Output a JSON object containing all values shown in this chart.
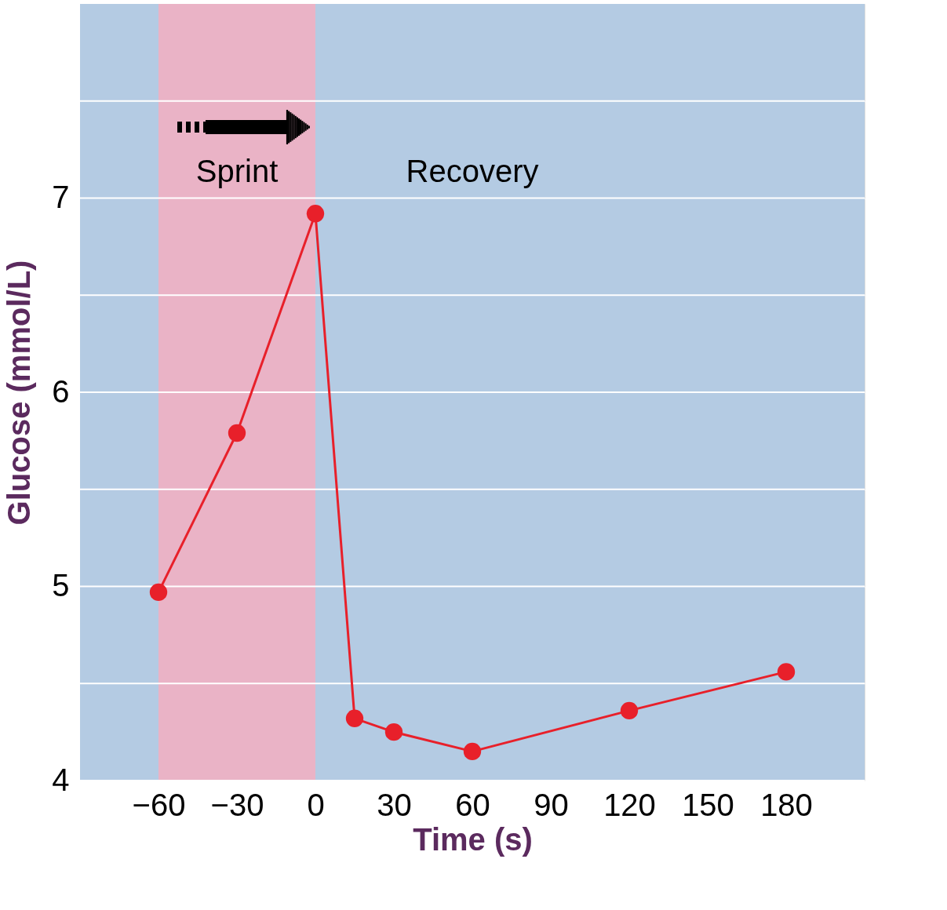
{
  "chart_data": {
    "type": "line",
    "xlabel": "Time (s)",
    "ylabel": "Glucose (mmol/L)",
    "x": [
      -60,
      -30,
      0,
      15,
      30,
      60,
      120,
      180
    ],
    "series": [
      {
        "color": "#e8202a",
        "values": [
          4.97,
          5.79,
          6.92,
          4.32,
          4.25,
          4.15,
          4.36,
          4.56
        ]
      }
    ],
    "xlim": [
      -90,
      210
    ],
    "xticks": [
      {
        "value": -60,
        "label": "−60"
      },
      {
        "value": -30,
        "label": "−30"
      },
      0,
      30,
      60,
      90,
      120,
      150,
      180
    ],
    "ylim": [
      4,
      8
    ],
    "yticks": [
      4,
      {
        "value": 4.5,
        "label": null
      },
      5,
      {
        "value": 5.5,
        "label": null
      },
      6,
      {
        "value": 6.5,
        "label": null
      },
      7,
      {
        "value": 7.5,
        "label": null
      }
    ],
    "grid": "y",
    "marker": "circle",
    "line_style": "solid",
    "annotations": [
      "Recovery"
    ],
    "bands": [
      {
        "axis": "x",
        "from": -60,
        "to": 0,
        "label": "Sprint",
        "color": "#eab3c6"
      }
    ]
  }
}
